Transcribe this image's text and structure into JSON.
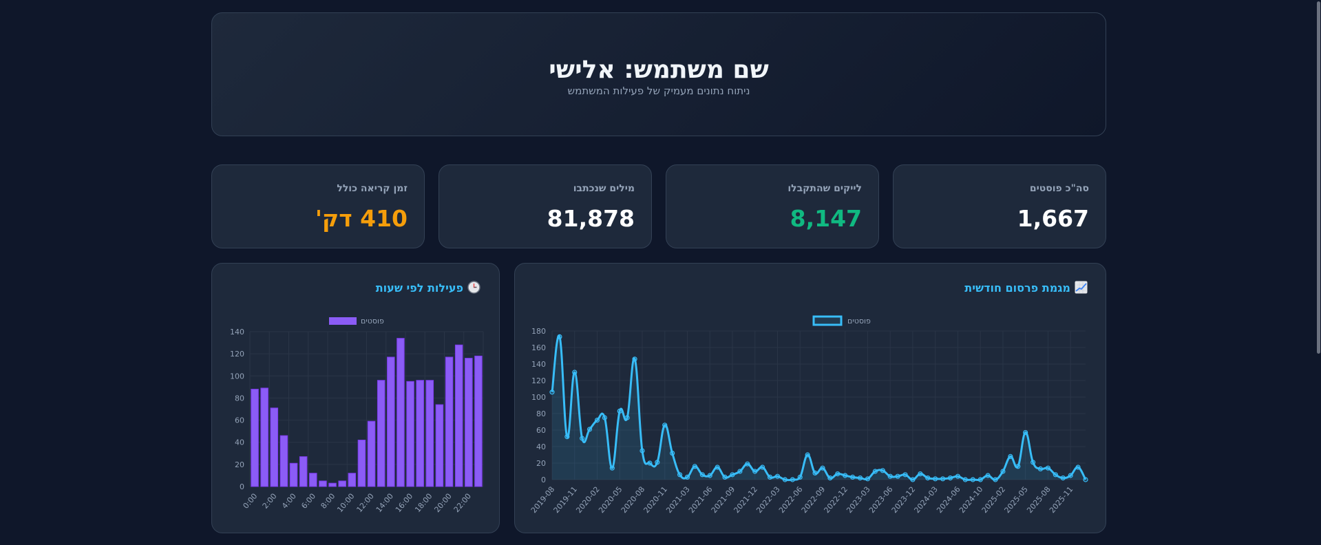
{
  "header": {
    "title": "שם משתמש: אלישי",
    "subtitle": "ניתוח נתונים מעמיק של פעילות המשתמש"
  },
  "stats": [
    {
      "label": "סה\"כ פוסטים",
      "value": "1,667",
      "color": "#ffffff"
    },
    {
      "label": "לייקים שהתקבלו",
      "value": "8,147",
      "color": "#10b981"
    },
    {
      "label": "מילים שנכתבו",
      "value": "81,878",
      "color": "#ffffff"
    },
    {
      "label": "זמן קריאה כולל",
      "value": "410 דק'",
      "color": "#f59e0b"
    }
  ],
  "colors": {
    "accent": "#38bdf8",
    "bar": "#8b5cf6",
    "background": "#0f172a",
    "card": "#1e293b"
  },
  "chart_data": [
    {
      "type": "line",
      "title": "מגמת פרסום חודשית",
      "title_icon": "chart-increasing-icon",
      "legend": "פוסטים",
      "legend_position": "top",
      "grid": true,
      "ylim": [
        0,
        180
      ],
      "yticks": [
        0,
        20,
        40,
        60,
        80,
        100,
        120,
        140,
        160,
        180
      ],
      "tick_labels": [
        "2019-08",
        "2019-11",
        "2020-02",
        "2020-05",
        "2020-08",
        "2020-11",
        "2021-03",
        "2021-06",
        "2021-09",
        "2021-12",
        "2022-03",
        "2022-06",
        "2022-09",
        "2022-12",
        "2023-03",
        "2023-06",
        "2023-12",
        "2024-03",
        "2024-06",
        "2024-10",
        "2025-02",
        "2025-05",
        "2025-08",
        "2025-11"
      ],
      "series": [
        {
          "name": "פוסטים",
          "values": [
            106,
            173,
            52,
            130,
            50,
            61,
            72,
            75,
            14,
            83,
            75,
            146,
            35,
            20,
            21,
            66,
            32,
            6,
            3,
            16,
            6,
            5,
            15,
            3,
            6,
            10,
            19,
            10,
            15,
            3,
            4,
            0,
            0,
            3,
            30,
            8,
            14,
            2,
            7,
            5,
            3,
            2,
            1,
            10,
            11,
            4,
            4,
            6,
            0,
            7,
            2,
            1,
            1,
            2,
            4,
            0,
            0,
            0,
            5,
            0,
            10,
            28,
            16,
            57,
            21,
            13,
            14,
            6,
            2,
            5,
            15,
            0
          ]
        }
      ]
    },
    {
      "type": "bar",
      "title": "פעילות לפי שעות",
      "title_icon": "clock-icon",
      "legend": "פוסטים",
      "legend_position": "top",
      "grid": true,
      "ylim": [
        0,
        140
      ],
      "yticks": [
        0,
        20,
        40,
        60,
        80,
        100,
        120,
        140
      ],
      "categories": [
        "0:00",
        "1:00",
        "2:00",
        "3:00",
        "4:00",
        "5:00",
        "6:00",
        "7:00",
        "8:00",
        "9:00",
        "10:00",
        "11:00",
        "12:00",
        "13:00",
        "14:00",
        "15:00",
        "16:00",
        "17:00",
        "18:00",
        "19:00",
        "20:00",
        "21:00",
        "22:00",
        "23:00"
      ],
      "tick_labels": [
        "0:00",
        "2:00",
        "4:00",
        "6:00",
        "8:00",
        "10:00",
        "12:00",
        "14:00",
        "16:00",
        "18:00",
        "20:00",
        "22:00"
      ],
      "series": [
        {
          "name": "פוסטים",
          "values": [
            88,
            89,
            71,
            46,
            21,
            27,
            12,
            5,
            3,
            5,
            12,
            42,
            59,
            96,
            117,
            134,
            95,
            96,
            96,
            74,
            117,
            128,
            116,
            118
          ]
        }
      ]
    }
  ]
}
